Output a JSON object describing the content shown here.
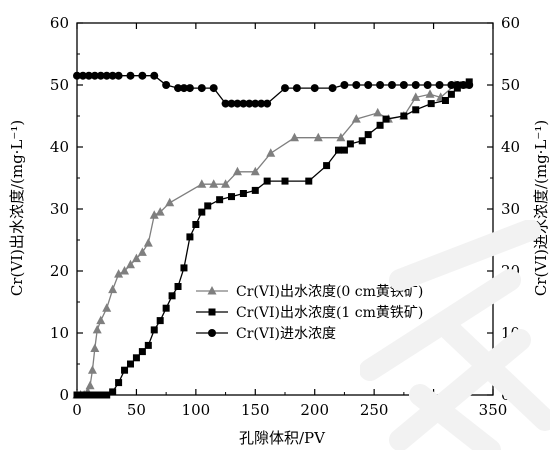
{
  "chart_data": {
    "type": "line",
    "xlabel": "孔隙体积/PV",
    "ylabel_left": "Cr(VI)出水浓度/(mg·L⁻¹)",
    "ylabel_right": "Cr(VI)进水浓度/(mg·L⁻¹)",
    "xlim": [
      0,
      350
    ],
    "ylim_left": [
      0,
      60
    ],
    "ylim_right": [
      0,
      60
    ],
    "xticks": [
      0,
      50,
      100,
      150,
      200,
      250,
      300,
      350
    ],
    "yticks": [
      0,
      10,
      20,
      30,
      40,
      50,
      60
    ],
    "grid": false,
    "legend_position": "lower-right",
    "series": [
      {
        "name": "Cr(VI)出水浓度(0 cm黄铁矿)",
        "marker": "triangle",
        "color": "#7f7f7f",
        "x": [
          0,
          3,
          6,
          9,
          11,
          13,
          15,
          17,
          20,
          25,
          30,
          35,
          40,
          45,
          50,
          55,
          60,
          65,
          70,
          78,
          105,
          115,
          125,
          135,
          150,
          163,
          183,
          203,
          222,
          235,
          253,
          262,
          275,
          285,
          297,
          306,
          318
        ],
        "y": [
          0,
          0,
          0,
          0.5,
          1.5,
          4,
          7.5,
          10.5,
          12,
          14,
          17,
          19.5,
          20,
          21,
          22,
          23,
          24.5,
          29,
          29.5,
          31,
          34,
          34,
          34,
          36,
          36,
          39,
          41.5,
          41.5,
          41.5,
          44.5,
          45.5,
          44.5,
          45,
          48,
          48.5,
          48,
          50
        ]
      },
      {
        "name": "Cr(VI)出水浓度(1 cm黄铁矿)",
        "marker": "square",
        "color": "#000000",
        "x": [
          0,
          5,
          10,
          15,
          20,
          25,
          30,
          35,
          40,
          45,
          50,
          55,
          60,
          65,
          70,
          75,
          80,
          85,
          90,
          95,
          100,
          105,
          110,
          120,
          130,
          140,
          150,
          160,
          175,
          195,
          210,
          220,
          225,
          230,
          240,
          245,
          255,
          260,
          275,
          285,
          298,
          310,
          315,
          320,
          325,
          330
        ],
        "y": [
          0,
          0,
          0,
          0,
          0,
          0,
          0.5,
          2,
          4,
          5,
          6,
          7,
          8,
          10.5,
          12,
          14,
          16,
          17.5,
          20.5,
          25.5,
          27.5,
          29.5,
          30.5,
          31.5,
          32,
          32.5,
          33,
          34.5,
          34.5,
          34.5,
          37,
          39.5,
          39.5,
          40.5,
          41,
          42,
          43.5,
          44.5,
          45,
          46,
          47,
          47.5,
          48.5,
          49.5,
          50,
          50.5
        ]
      },
      {
        "name": "Cr(VI)进水浓度",
        "marker": "circle",
        "color": "#000000",
        "x": [
          0,
          5,
          10,
          15,
          20,
          25,
          30,
          35,
          45,
          55,
          65,
          75,
          85,
          90,
          95,
          105,
          115,
          125,
          130,
          135,
          140,
          145,
          150,
          155,
          160,
          175,
          185,
          200,
          215,
          225,
          235,
          245,
          255,
          265,
          275,
          285,
          295,
          305,
          315,
          320,
          325,
          330
        ],
        "y": [
          51.5,
          51.5,
          51.5,
          51.5,
          51.5,
          51.5,
          51.5,
          51.5,
          51.5,
          51.5,
          51.5,
          50,
          49.5,
          49.5,
          49.5,
          49.5,
          49.5,
          47,
          47,
          47,
          47,
          47,
          47,
          47,
          47,
          49.5,
          49.5,
          49.5,
          49.5,
          50,
          50,
          50,
          50,
          50,
          50,
          50,
          50,
          50,
          50,
          50,
          50,
          50
        ]
      }
    ]
  }
}
